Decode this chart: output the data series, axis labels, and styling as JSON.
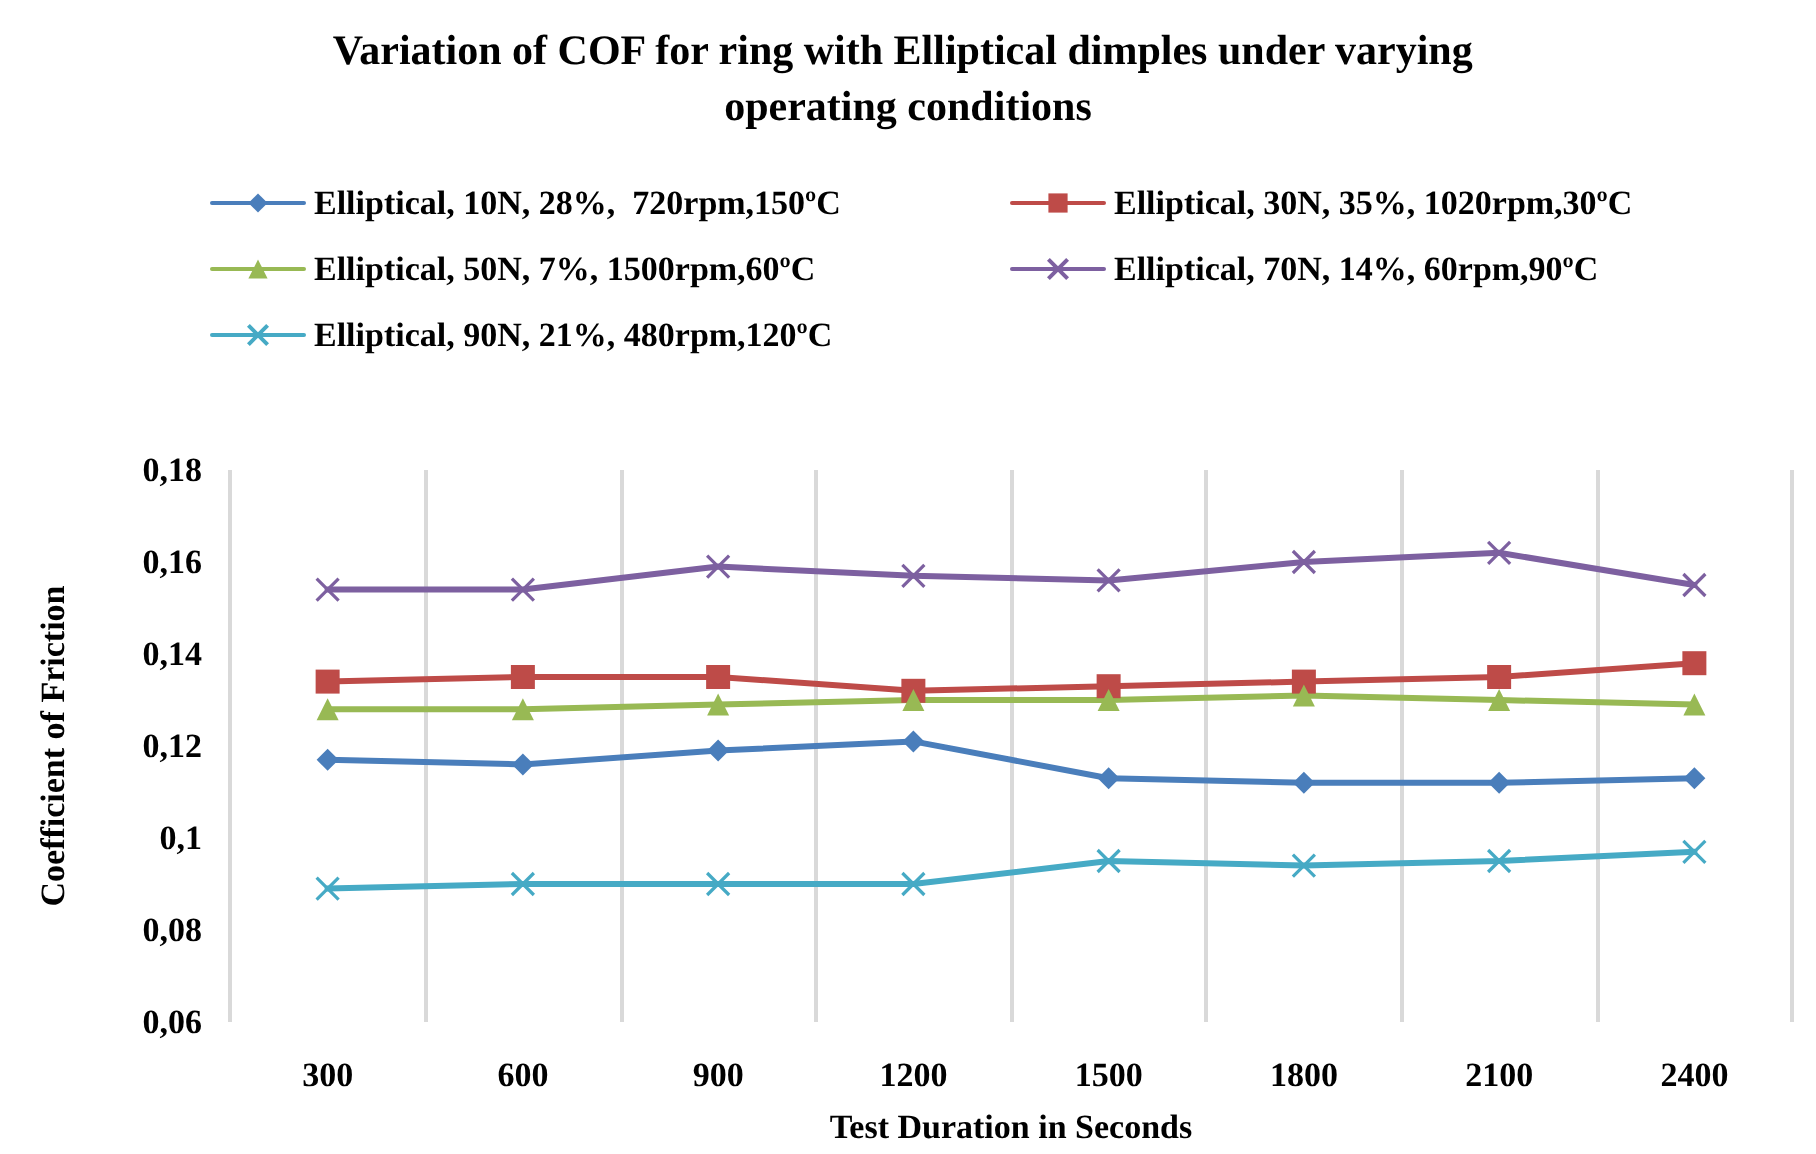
{
  "chart_data": {
    "type": "line",
    "title": "Variation of COF for ring with Elliptical dimples under varying operating conditions",
    "xlabel": "Test Duration in Seconds",
    "ylabel": "Coefficient of Friction",
    "categories": [
      "300",
      "600",
      "900",
      "1200",
      "1500",
      "1800",
      "2100",
      "2400"
    ],
    "series": [
      {
        "name": "Elliptical, 10N, 28%,  720rpm,150ºC",
        "color": "#4a7ebb",
        "marker": "diamond",
        "values": [
          0.117,
          0.116,
          0.119,
          0.121,
          0.113,
          0.112,
          0.112,
          0.113
        ]
      },
      {
        "name": "Elliptical, 30N, 35%, 1020rpm,30ºC",
        "color": "#be4b48",
        "marker": "square",
        "values": [
          0.134,
          0.135,
          0.135,
          0.132,
          0.133,
          0.134,
          0.135,
          0.138
        ]
      },
      {
        "name": "Elliptical, 50N, 7%, 1500rpm,60ºC",
        "color": "#98b954",
        "marker": "triangle",
        "values": [
          0.128,
          0.128,
          0.129,
          0.13,
          0.13,
          0.131,
          0.13,
          0.129
        ]
      },
      {
        "name": "Elliptical, 70N, 14%, 60rpm,90ºC",
        "color": "#7d60a0",
        "marker": "cross",
        "values": [
          0.154,
          0.154,
          0.159,
          0.157,
          0.156,
          0.16,
          0.162,
          0.155
        ]
      },
      {
        "name": "Elliptical, 90N, 21%, 480rpm,120ºC",
        "color": "#46aac5",
        "marker": "cross",
        "values": [
          0.089,
          0.09,
          0.09,
          0.09,
          0.095,
          0.094,
          0.095,
          0.097
        ]
      }
    ],
    "ylim": [
      0.06,
      0.18
    ],
    "yticks": [
      {
        "value": 0.06,
        "label": "0,06"
      },
      {
        "value": 0.08,
        "label": "0,08"
      },
      {
        "value": 0.1,
        "label": "0,1"
      },
      {
        "value": 0.12,
        "label": "0,12"
      },
      {
        "value": 0.14,
        "label": "0,14"
      },
      {
        "value": 0.16,
        "label": "0,16"
      },
      {
        "value": 0.18,
        "label": "0,18"
      }
    ],
    "grid": "x",
    "legend": "top",
    "line_style": "solid"
  }
}
